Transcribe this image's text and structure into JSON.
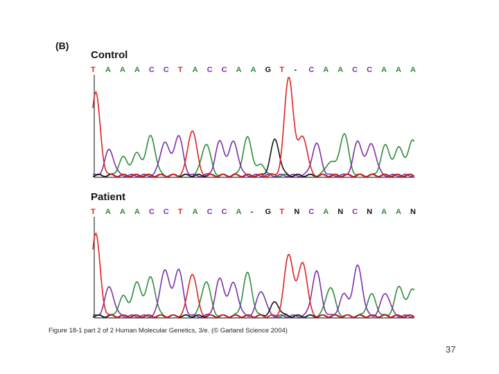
{
  "figure": {
    "panel_label": "(B)",
    "caption": "Figure 18-1 part 2 of 2  Human Molecular Genetics, 3/e.  (© Garland Science 2004)",
    "page_number": "37"
  },
  "colors": {
    "A": "#2e8b3a",
    "C": "#7b2fa8",
    "G": "#111111",
    "T": "#e02020",
    "N": "#111111",
    "-": "#111111"
  },
  "control": {
    "title": "Control",
    "bases": [
      "T",
      "A",
      "A",
      "A",
      "C",
      "C",
      "T",
      "A",
      "C",
      "C",
      "A",
      "A",
      "G",
      "T",
      "-",
      "C",
      "A",
      "A",
      "C",
      "C",
      "A",
      "A",
      "A"
    ],
    "trace_peaks": [
      {
        "base": "T",
        "h": 0.84
      },
      {
        "base": "C",
        "h": 0.26
      },
      {
        "base": "A",
        "h": 0.18
      },
      {
        "base": "A",
        "h": 0.22
      },
      {
        "base": "A",
        "h": 0.4
      },
      {
        "base": "C",
        "h": 0.34
      },
      {
        "base": "C",
        "h": 0.4
      },
      {
        "base": "T",
        "h": 0.46
      },
      {
        "base": "A",
        "h": 0.32
      },
      {
        "base": "C",
        "h": 0.34
      },
      {
        "base": "C",
        "h": 0.34
      },
      {
        "base": "A",
        "h": 0.38
      },
      {
        "base": "A",
        "h": 0.1
      },
      {
        "base": "G",
        "h": 0.36
      },
      {
        "base": "T",
        "h": 1.0
      },
      {
        "base": "T",
        "h": 0.4
      },
      {
        "base": "C",
        "h": 0.32
      },
      {
        "base": "A",
        "h": 0.14
      },
      {
        "base": "A",
        "h": 0.42
      },
      {
        "base": "C",
        "h": 0.34
      },
      {
        "base": "C",
        "h": 0.32
      },
      {
        "base": "A",
        "h": 0.3
      },
      {
        "base": "A",
        "h": 0.28
      },
      {
        "base": "A",
        "h": 0.36
      }
    ]
  },
  "patient": {
    "title": "Patient",
    "bases": [
      "T",
      "A",
      "A",
      "A",
      "C",
      "C",
      "T",
      "A",
      "C",
      "C",
      "A",
      "-",
      "G",
      "T",
      "N",
      "C",
      "A",
      "N",
      "C",
      "N",
      "A",
      "A",
      "N"
    ],
    "trace_peaks": [
      {
        "base": "T",
        "h": 0.85
      },
      {
        "base": "C",
        "h": 0.3
      },
      {
        "base": "A",
        "h": 0.2
      },
      {
        "base": "A",
        "h": 0.34
      },
      {
        "base": "A",
        "h": 0.4
      },
      {
        "base": "C",
        "h": 0.48
      },
      {
        "base": "C",
        "h": 0.48
      },
      {
        "base": "T",
        "h": 0.44
      },
      {
        "base": "A",
        "h": 0.36
      },
      {
        "base": "C",
        "h": 0.38
      },
      {
        "base": "C",
        "h": 0.34
      },
      {
        "base": "A",
        "h": 0.44
      },
      {
        "base": "C",
        "h": 0.26
      },
      {
        "base": "G",
        "h": 0.14
      },
      {
        "base": "T",
        "h": 0.64
      },
      {
        "base": "T",
        "h": 0.56
      },
      {
        "base": "C",
        "h": 0.46
      },
      {
        "base": "A",
        "h": 0.3
      },
      {
        "base": "C",
        "h": 0.22
      },
      {
        "base": "C",
        "h": 0.52
      },
      {
        "base": "A",
        "h": 0.22
      },
      {
        "base": "C",
        "h": 0.24
      },
      {
        "base": "A",
        "h": 0.3
      },
      {
        "base": "A",
        "h": 0.28
      }
    ]
  }
}
